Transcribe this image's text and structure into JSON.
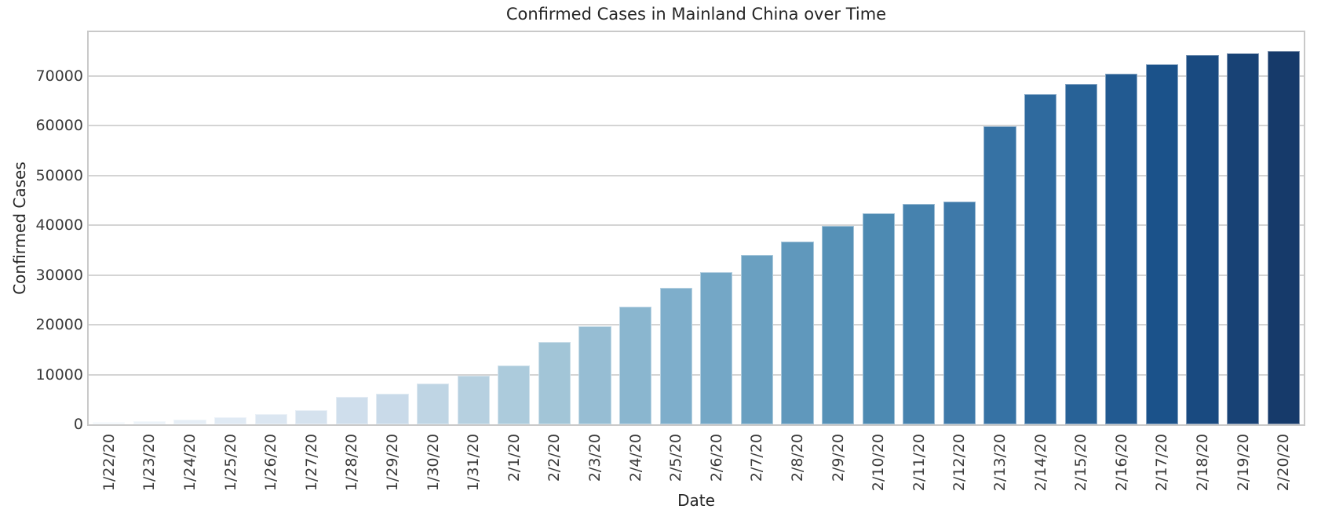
{
  "chart_data": {
    "type": "bar",
    "title": "Confirmed Cases in Mainland China over Time",
    "xlabel": "Date",
    "ylabel": "Confirmed Cases",
    "categories": [
      "1/22/20",
      "1/23/20",
      "1/24/20",
      "1/25/20",
      "1/26/20",
      "1/27/20",
      "1/28/20",
      "1/29/20",
      "1/30/20",
      "1/31/20",
      "2/1/20",
      "2/2/20",
      "2/3/20",
      "2/4/20",
      "2/5/20",
      "2/6/20",
      "2/7/20",
      "2/8/20",
      "2/9/20",
      "2/10/20",
      "2/11/20",
      "2/12/20",
      "2/13/20",
      "2/14/20",
      "2/15/20",
      "2/16/20",
      "2/17/20",
      "2/18/20",
      "2/19/20",
      "2/20/20"
    ],
    "values": [
      547,
      639,
      916,
      1399,
      2062,
      2863,
      5494,
      6070,
      8124,
      9783,
      11871,
      16607,
      19693,
      23680,
      27409,
      30553,
      34075,
      36778,
      39790,
      42306,
      44327,
      44699,
      59832,
      66292,
      68347,
      70446,
      72364,
      74139,
      74546,
      74999
    ],
    "ylim": [
      0,
      78749
    ],
    "yticks": [
      0,
      10000,
      20000,
      30000,
      40000,
      50000,
      60000,
      70000
    ],
    "grid": "horizontal",
    "legend": "none",
    "palette_name": "Blues",
    "bar_colors": [
      "#f2f7fb",
      "#ecf3f9",
      "#e6eef6",
      "#e0eaf4",
      "#dbe6f1",
      "#d5e2ee",
      "#cfdeec",
      "#c9dae9",
      "#bfd5e4",
      "#b6d0e0",
      "#accbdc",
      "#a2c5d7",
      "#96bdd3",
      "#8ab6cf",
      "#7eaecb",
      "#74a7c6",
      "#6aa0c1",
      "#6098bc",
      "#5691b7",
      "#4d8ab2",
      "#4682ae",
      "#3e79a9",
      "#3672a4",
      "#2f6a9e",
      "#286297",
      "#225a91",
      "#1b528a",
      "#194a80",
      "#184275",
      "#163a6a"
    ]
  },
  "style": {
    "background_color": "#ffffff",
    "grid_color": "#d4d4d4",
    "spine_color": "#c9c9c9",
    "title_color": "#262626",
    "tick_color": "#3a3a3a"
  }
}
